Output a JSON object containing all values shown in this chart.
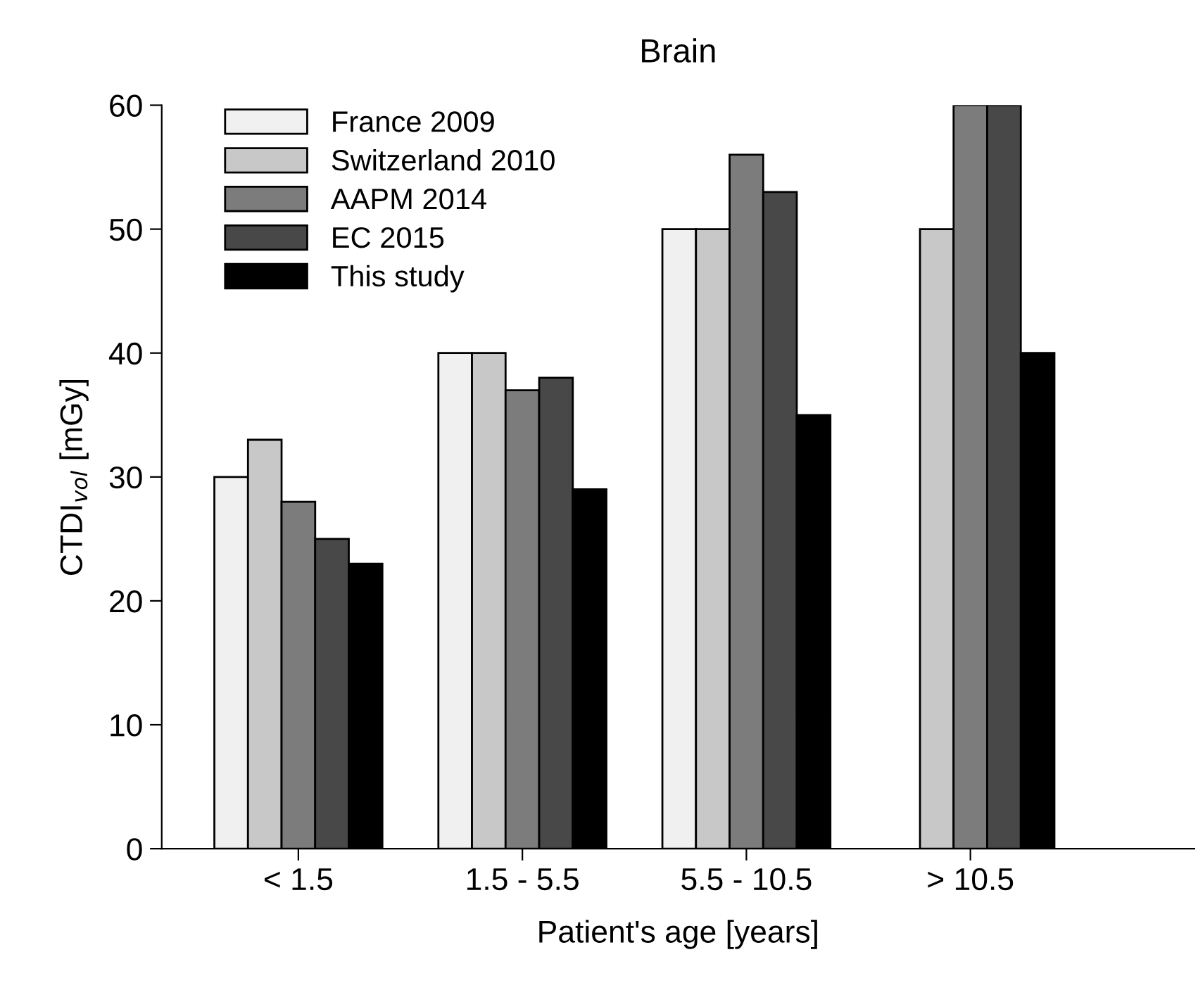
{
  "chart_data": {
    "type": "bar",
    "title": "Brain",
    "xlabel": "Patient's age [years]",
    "ylabel": "CTDI$_{vol}$ [mGy]",
    "categories": [
      "< 1.5",
      "1.5 - 5.5",
      "5.5 - 10.5",
      "> 10.5"
    ],
    "series": [
      {
        "name": "France 2009",
        "color": "#f0f0f0",
        "values": [
          30,
          40,
          50,
          null
        ]
      },
      {
        "name": "Switzerland 2010",
        "color": "#c8c8c8",
        "values": [
          33,
          40,
          50,
          50
        ]
      },
      {
        "name": "AAPM 2014",
        "color": "#7c7c7c",
        "values": [
          28,
          37,
          56,
          60
        ]
      },
      {
        "name": "EC 2015",
        "color": "#484848",
        "values": [
          25,
          38,
          53,
          60
        ]
      },
      {
        "name": "This study",
        "color": "#000000",
        "values": [
          23,
          29,
          35,
          40
        ]
      }
    ],
    "ylim": [
      0,
      60
    ],
    "yticks": [
      0,
      10,
      20,
      30,
      40,
      50,
      60
    ],
    "grid": false,
    "legend": "top left"
  }
}
